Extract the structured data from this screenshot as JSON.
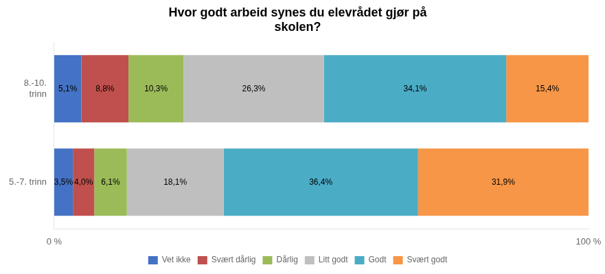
{
  "chart_data": {
    "type": "bar",
    "orientation": "horizontal",
    "stacked": true,
    "title": "Hvor godt arbeid synes du elevrådet gjør på\nskolen?",
    "categories": [
      "8.-10.\ntrinn",
      "5.-7. trinn"
    ],
    "series": [
      {
        "name": "Vet ikke",
        "color": "#4472c4",
        "values": [
          5.1,
          3.5
        ],
        "value_labels": [
          "5,1%",
          "3,5%"
        ]
      },
      {
        "name": "Svært dårlig",
        "color": "#c0504d",
        "values": [
          8.8,
          4.0
        ],
        "value_labels": [
          "8,8%",
          "4,0%"
        ]
      },
      {
        "name": "Dårlig",
        "color": "#9bbb59",
        "values": [
          10.3,
          6.1
        ],
        "value_labels": [
          "10,3%",
          "6,1%"
        ]
      },
      {
        "name": "Litt godt",
        "color": "#bfbfbf",
        "values": [
          26.3,
          18.1
        ],
        "value_labels": [
          "26,3%",
          "18,1%"
        ]
      },
      {
        "name": "Godt",
        "color": "#4bacc6",
        "values": [
          34.1,
          36.4
        ],
        "value_labels": [
          "34,1%",
          "36,4%"
        ]
      },
      {
        "name": "Svært godt",
        "color": "#f79646",
        "values": [
          15.4,
          31.9
        ],
        "value_labels": [
          "15,4%",
          "31,9%"
        ]
      }
    ],
    "xlim": [
      0,
      100
    ],
    "xticks": [
      {
        "value": 0,
        "label": "0 %"
      },
      {
        "value": 100,
        "label": "100 %"
      }
    ],
    "data_labels": true,
    "grid": false,
    "legend": "bottom"
  }
}
